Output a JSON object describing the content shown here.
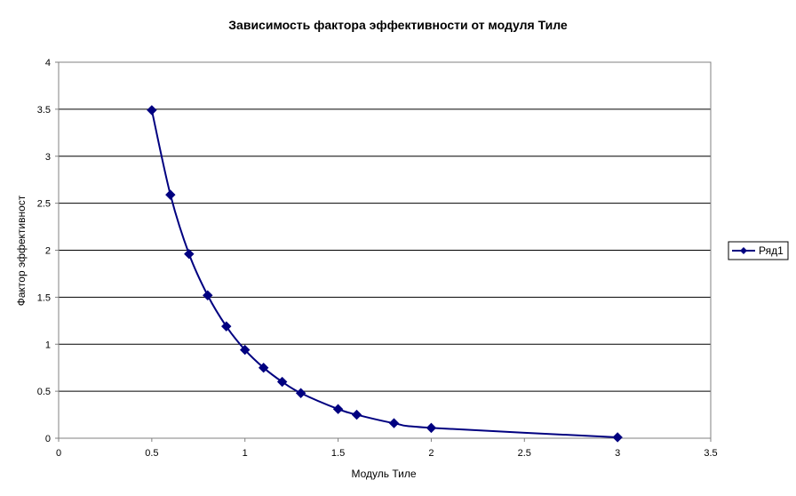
{
  "chart_data": {
    "type": "scatter",
    "title": "Зависимость фактора эффективности от модуля Тиле",
    "xlabel": "Модуль Тиле",
    "ylabel": "Фактор эффективност",
    "xlim": [
      0,
      3.5
    ],
    "ylim": [
      0,
      4
    ],
    "x_ticks": [
      0,
      0.5,
      1,
      1.5,
      2,
      2.5,
      3,
      3.5
    ],
    "x_tick_labels": [
      "0",
      "0.5",
      "1",
      "1.5",
      "2",
      "2.5",
      "3",
      "3.5"
    ],
    "y_ticks": [
      0,
      0.5,
      1,
      1.5,
      2,
      2.5,
      3,
      3.5,
      4
    ],
    "y_tick_labels": [
      "0",
      "0.5",
      "1",
      "1.5",
      "2",
      "2.5",
      "3",
      "3.5",
      "4"
    ],
    "grid": "horizontal",
    "legend_position": "right",
    "series": [
      {
        "name": "Ряд1",
        "color": "#000080",
        "marker": "diamond",
        "smooth": true,
        "x": [
          0.5,
          0.6,
          0.7,
          0.8,
          0.9,
          1.0,
          1.1,
          1.2,
          1.3,
          1.5,
          1.6,
          1.8,
          2.0,
          3.0
        ],
        "y": [
          3.49,
          2.59,
          1.96,
          1.52,
          1.19,
          0.94,
          0.75,
          0.6,
          0.48,
          0.31,
          0.25,
          0.16,
          0.11,
          0.01
        ]
      }
    ]
  }
}
